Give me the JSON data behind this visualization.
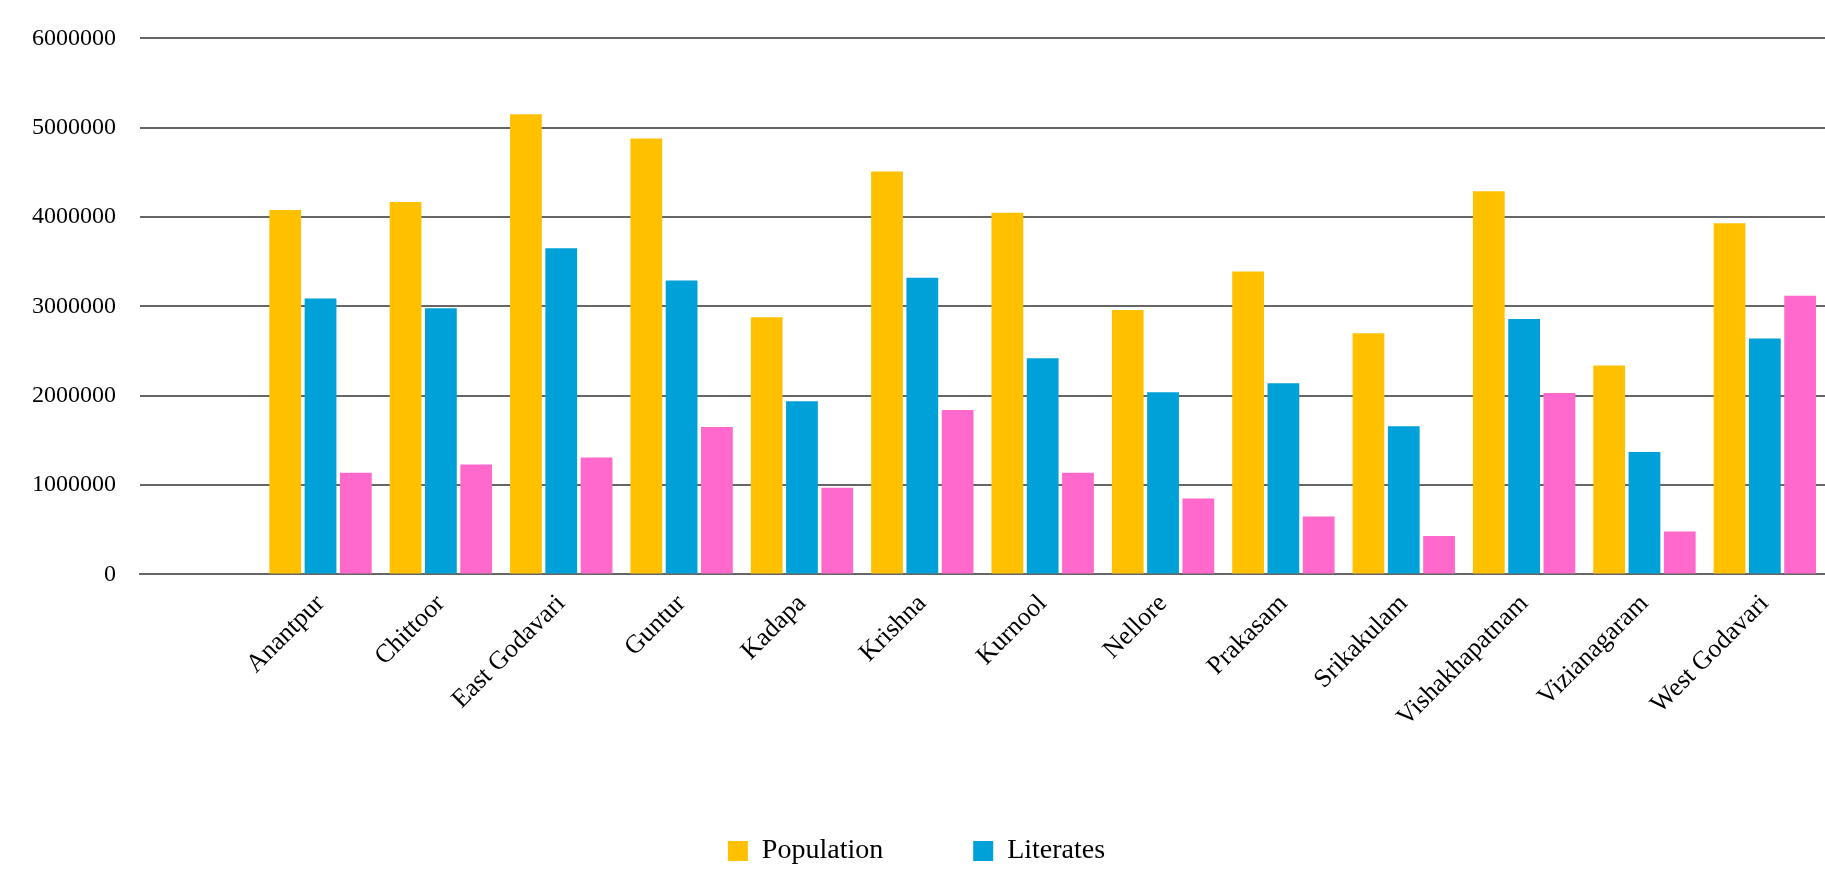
{
  "chart_data": {
    "type": "bar",
    "categories": [
      null,
      "Anantpur",
      "Chittoor",
      "East Godavari",
      "Guntur",
      "Kadapa",
      "Krishna",
      "Kurnool",
      "Nellore",
      "Prakasam",
      "Srikakulam",
      "Vishakhapatnam",
      "Vizianagaram",
      "West Godavari"
    ],
    "series": [
      {
        "name": "Population",
        "color": "#ffc000",
        "values": [
          null,
          4080000,
          4170000,
          5150000,
          4880000,
          2880000,
          4510000,
          4050000,
          2960000,
          3390000,
          2700000,
          4290000,
          2340000,
          3930000
        ]
      },
      {
        "name": "Literates",
        "color": "#00a0d8",
        "values": [
          null,
          3090000,
          2980000,
          3650000,
          3290000,
          1940000,
          3320000,
          2420000,
          2040000,
          2140000,
          1660000,
          2860000,
          1370000,
          2640000
        ]
      },
      {
        "color": "#ff69cc",
        "values": [
          null,
          1140000,
          1230000,
          1310000,
          1650000,
          970000,
          1840000,
          1140000,
          850000,
          650000,
          430000,
          2030000,
          480000,
          3120000
        ]
      }
    ],
    "ylim": [
      0,
      6000000
    ],
    "yticks": [
      0,
      1000000,
      2000000,
      3000000,
      4000000,
      5000000,
      6000000
    ],
    "grid": "y",
    "legend": "bottom"
  }
}
